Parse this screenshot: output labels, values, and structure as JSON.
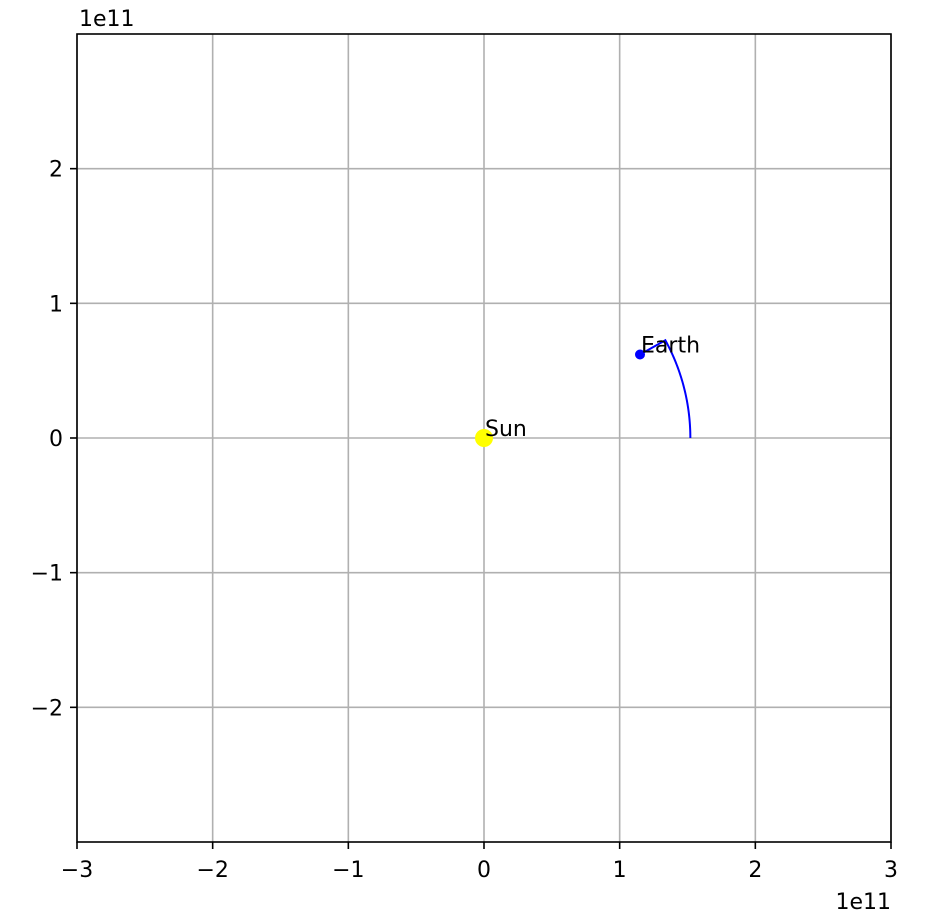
{
  "chart_data": {
    "type": "line",
    "title": "",
    "xlabel": "",
    "ylabel": "",
    "x_offset_text": "1e11",
    "y_offset_text": "1e11",
    "xlim": [
      -300000000000.0,
      300000000000.0
    ],
    "ylim": [
      -300000000000.0,
      300000000000.0
    ],
    "xticks": [
      -300000000000.0,
      -200000000000.0,
      -100000000000.0,
      0,
      100000000000.0,
      200000000000.0,
      300000000000.0
    ],
    "xtick_labels": [
      "−3",
      "−2",
      "−1",
      "0",
      "1",
      "2",
      "3"
    ],
    "yticks": [
      -200000000000.0,
      -100000000000.0,
      0,
      100000000000.0,
      200000000000.0
    ],
    "ytick_labels": [
      "−2",
      "−1",
      "0",
      "1",
      "2"
    ],
    "grid": true,
    "orbit_start_angle_deg": 0,
    "orbit_end_angle_deg": 28.5,
    "series": [
      {
        "name": "",
        "kind": "line",
        "color": "#0000ff",
        "x": [
          152100000000.0,
          151400000000.0,
          149500000000.0,
          146300000000.0,
          141900000000.0,
          136400000000.0,
          129600000000.0,
          115000000000.0
        ],
        "y": [
          0,
          11600000000.0,
          22800000000.0,
          33600000000.0,
          43800000000.0,
          53300000000.0,
          62000000000.0,
          62000000000.0
        ]
      },
      {
        "name": "",
        "kind": "point",
        "label": "Earth",
        "color": "#0000ff",
        "x": [
          115000000000.0
        ],
        "y": [
          62000000000.0
        ]
      },
      {
        "name": "",
        "kind": "point",
        "label": "Sun",
        "color": "#ffff00",
        "x": [
          0
        ],
        "y": [
          0
        ]
      }
    ]
  }
}
